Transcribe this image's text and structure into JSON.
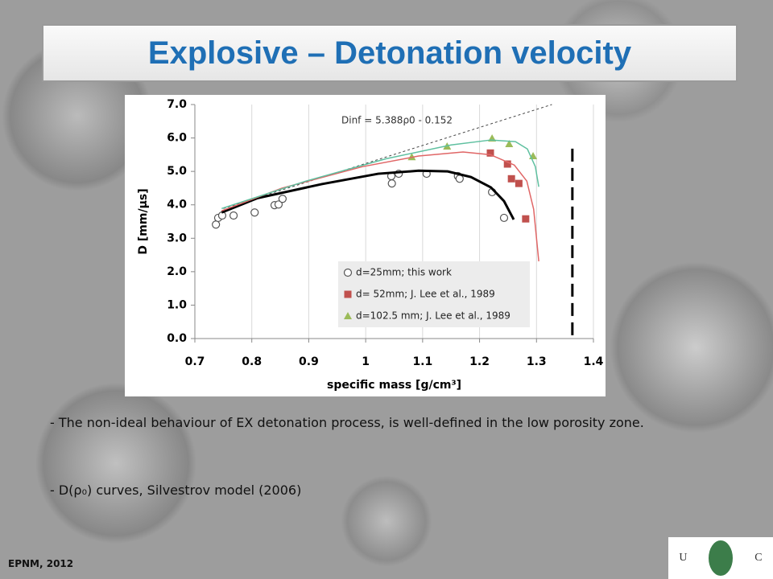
{
  "slide": {
    "title": "Explosive – Detonation velocity",
    "paragraphs": [
      "- The non-ideal behaviour of EX detonation process, is well-defined in the low porosity zone.",
      "- D(ρ₀) curves, Silvestrov model (2006)"
    ],
    "footer": "EPNM, 2012",
    "logo": [
      "U",
      "C"
    ]
  },
  "chart_data": {
    "type": "scatter",
    "x_label": "specific mass  [g/cm³]",
    "y_label": "D [mm/μs]",
    "annotation": "Dinf = 5.388ρ0 - 0.152",
    "xlim": [
      0.7,
      1.4
    ],
    "xticks": [
      0.7,
      0.8,
      0.9,
      1.0,
      1.1,
      1.2,
      1.3,
      1.4
    ],
    "ylim": [
      0,
      7
    ],
    "yticks": [
      {
        "value": 0,
        "label": "0.0"
      },
      {
        "value": 1,
        "label": "1.0"
      },
      {
        "value": 2,
        "label": "2.0"
      },
      {
        "value": 3,
        "label": "3.0"
      },
      {
        "value": 4,
        "label": "4.0"
      },
      {
        "value": 5,
        "label": "5.0"
      },
      {
        "value": 6,
        "label": "6.0"
      },
      {
        "value": 7,
        "label": "7.0"
      }
    ],
    "grid": "x",
    "legend": "lower right",
    "series": [
      {
        "name": "d=25mm; this work",
        "color": "#555555",
        "marker": "circle",
        "x": [
          0.737,
          0.741,
          0.748,
          0.768,
          0.805,
          0.84,
          0.847,
          0.854,
          1.045,
          1.046,
          1.058,
          1.107,
          1.162,
          1.165,
          1.222,
          1.243
        ],
        "values": [
          3.41,
          3.61,
          3.68,
          3.68,
          3.77,
          3.99,
          4.01,
          4.18,
          4.86,
          4.64,
          4.93,
          4.93,
          4.86,
          4.78,
          4.38,
          3.61
        ]
      },
      {
        "name": "d= 52mm; J. Lee et al., 1989",
        "color": "#c0504d",
        "marker": "square",
        "x": [
          1.219,
          1.249,
          1.256,
          1.269,
          1.281
        ],
        "values": [
          5.55,
          5.22,
          4.78,
          4.64,
          3.58
        ]
      },
      {
        "name": "d=102.5 mm; J. Lee et al., 1989",
        "color": "#9bbb59",
        "marker": "triangle",
        "x": [
          1.081,
          1.143,
          1.222,
          1.252,
          1.294
        ],
        "values": [
          5.43,
          5.75,
          5.99,
          5.82,
          5.46
        ]
      },
      {
        "color": "#444444",
        "line_style": "dotted",
        "width": 1,
        "x": [
          0.75,
          1.327
        ],
        "values": [
          3.89,
          7.0
        ]
      },
      {
        "color": "#000000",
        "line_style": "solid",
        "width": 3,
        "x": [
          0.747,
          0.81,
          0.923,
          1.022,
          1.093,
          1.144,
          1.185,
          1.22,
          1.243,
          1.26
        ],
        "values": [
          3.77,
          4.2,
          4.62,
          4.93,
          5.02,
          5.0,
          4.83,
          4.52,
          4.11,
          3.56
        ]
      },
      {
        "color": "#e06666",
        "line_style": "solid",
        "width": 1.5,
        "x": [
          0.747,
          0.853,
          0.994,
          1.093,
          1.171,
          1.219,
          1.261,
          1.283,
          1.295,
          1.304
        ],
        "values": [
          3.82,
          4.5,
          5.14,
          5.46,
          5.58,
          5.5,
          5.19,
          4.71,
          3.87,
          2.31
        ]
      },
      {
        "color": "#5fc0a0",
        "line_style": "solid",
        "width": 1.5,
        "x": [
          0.747,
          0.895,
          1.036,
          1.15,
          1.22,
          1.263,
          1.284,
          1.298,
          1.304
        ],
        "values": [
          3.89,
          4.71,
          5.38,
          5.79,
          5.94,
          5.89,
          5.67,
          5.14,
          4.54
        ]
      },
      {
        "color": "#000000",
        "line_style": "dashed",
        "width": 3,
        "x": [
          1.363,
          1.363
        ],
        "values": [
          0.1,
          5.8
        ]
      }
    ]
  }
}
